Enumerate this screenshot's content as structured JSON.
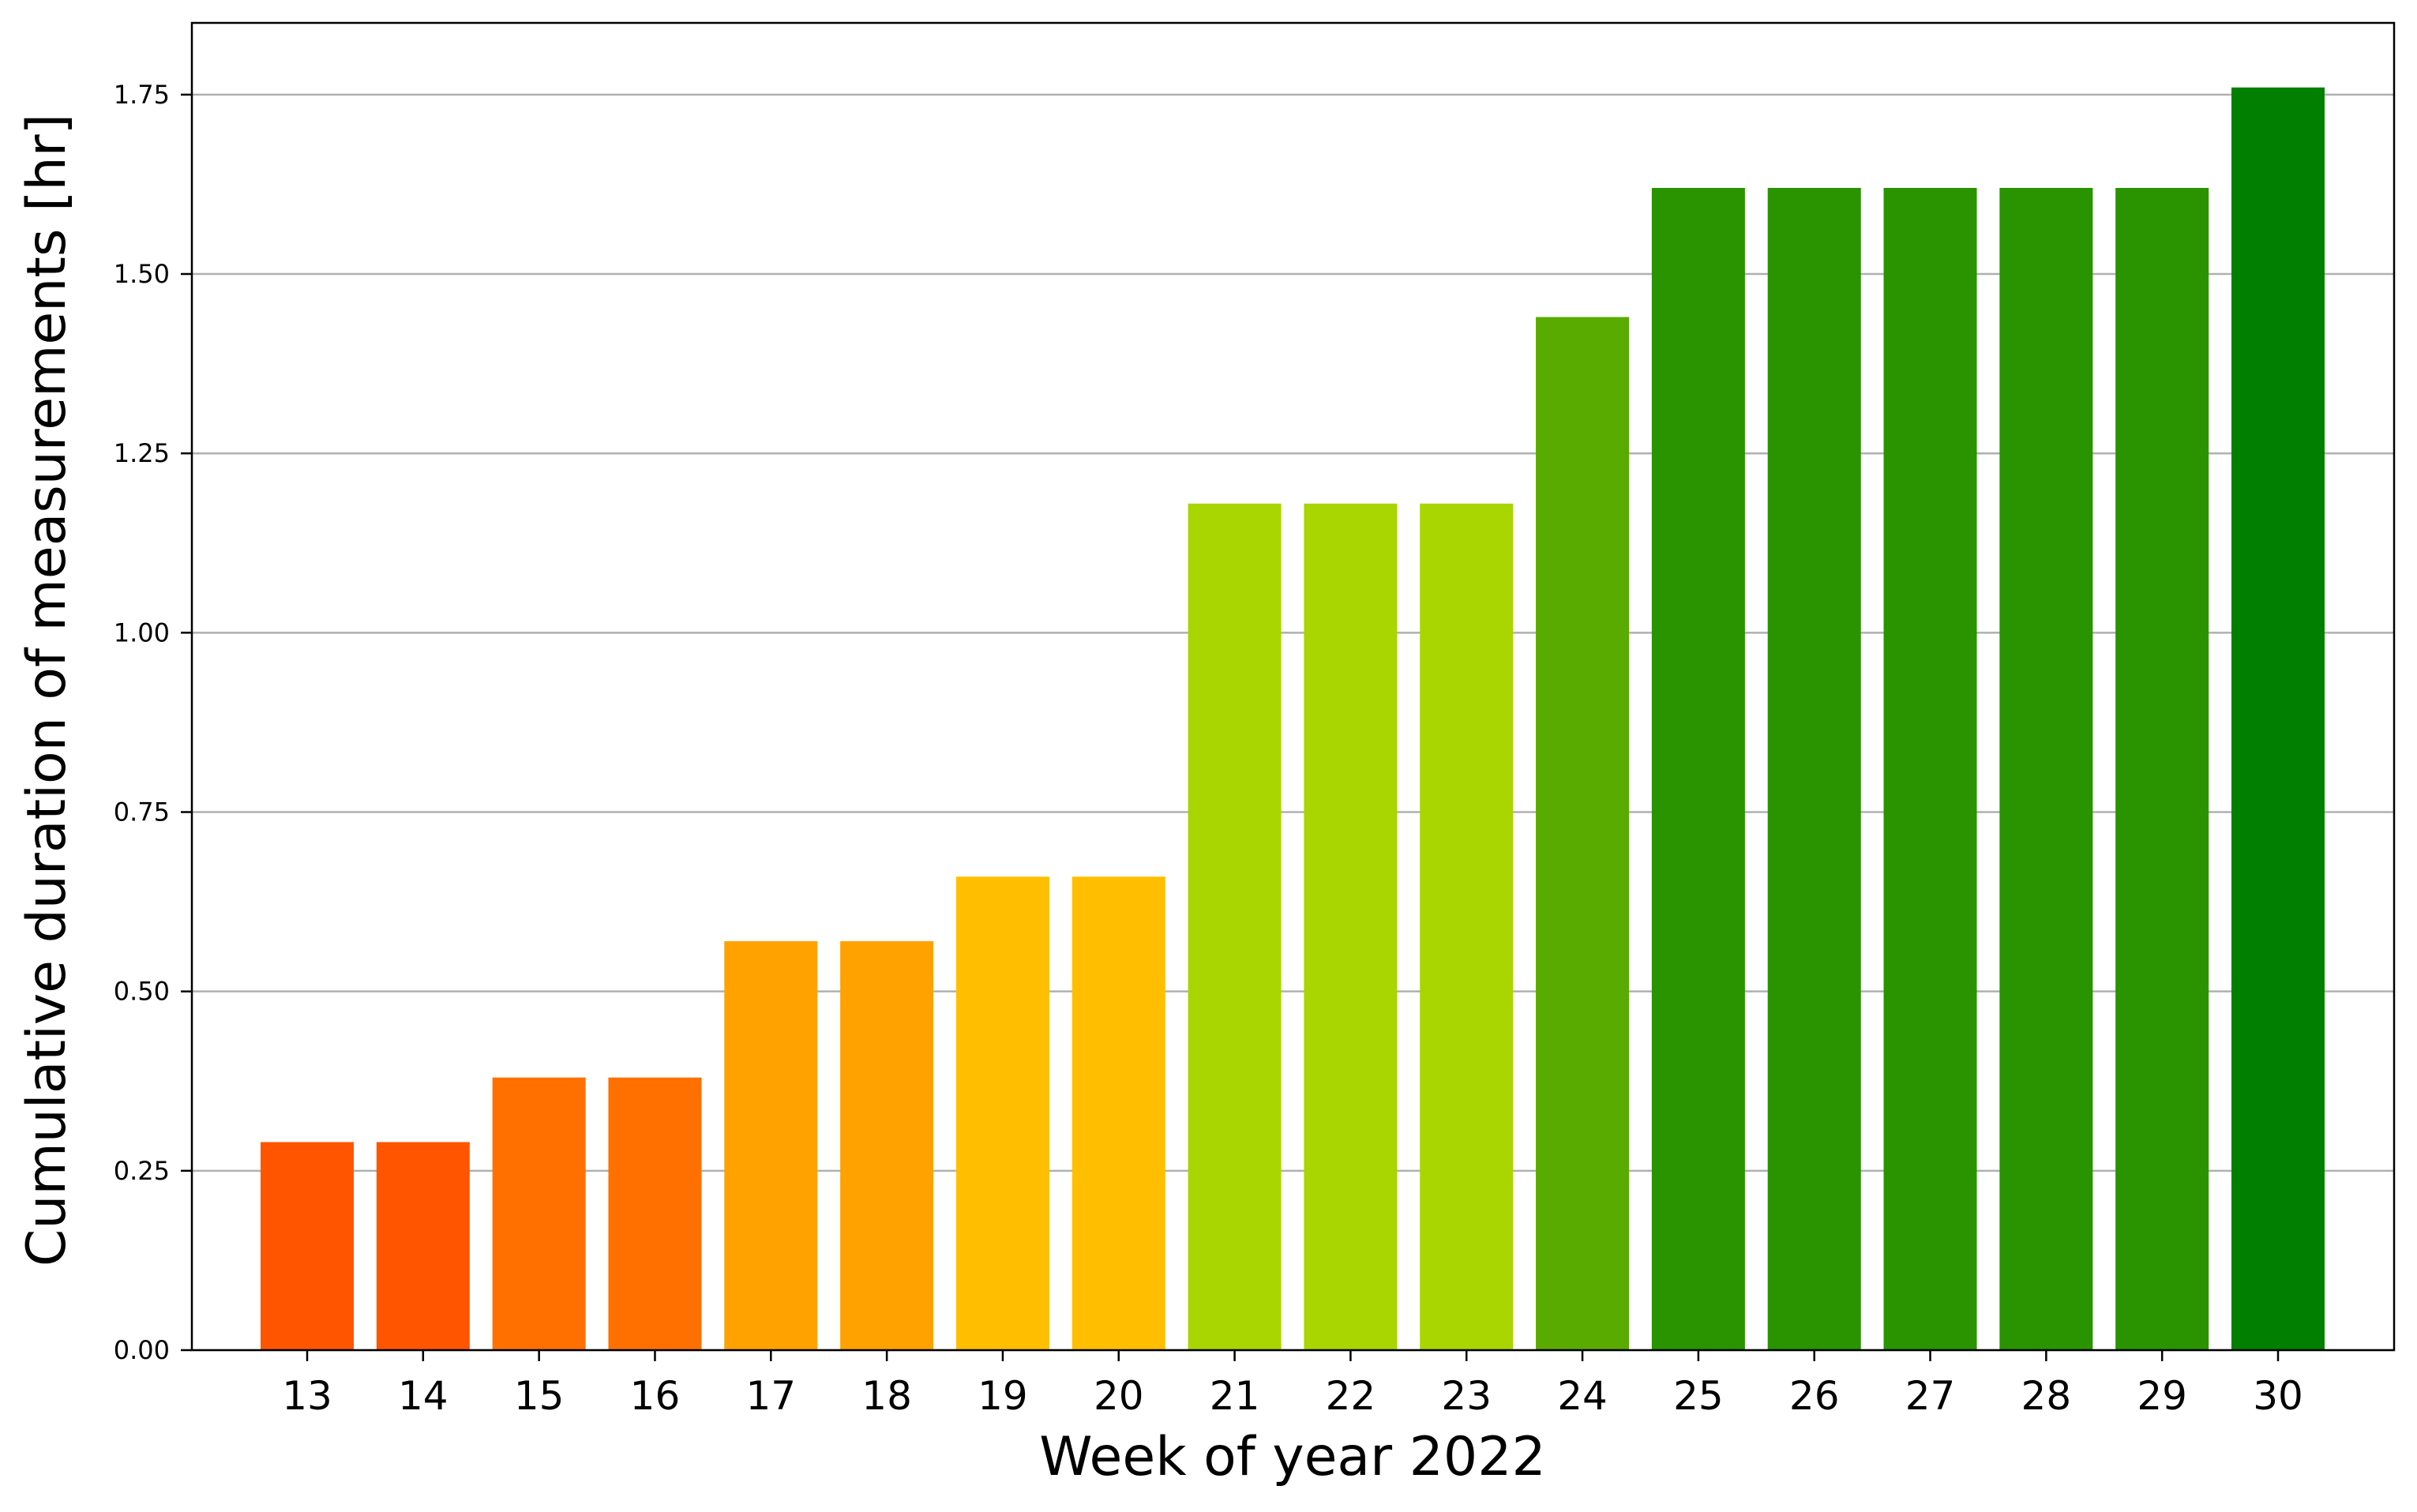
{
  "chart_data": {
    "type": "bar",
    "title": "",
    "xlabel": "Week of year 2022",
    "ylabel": "Cumulative duration of measurements [hr]",
    "categories": [
      "13",
      "14",
      "15",
      "16",
      "17",
      "18",
      "19",
      "20",
      "21",
      "22",
      "23",
      "24",
      "25",
      "26",
      "27",
      "28",
      "29",
      "30"
    ],
    "values": [
      0.29,
      0.29,
      0.38,
      0.38,
      0.57,
      0.57,
      0.66,
      0.66,
      1.18,
      1.18,
      1.18,
      1.44,
      1.62,
      1.62,
      1.62,
      1.62,
      1.62,
      1.76
    ],
    "colors": [
      "#ff5500",
      "#ff5500",
      "#ff7000",
      "#ff7000",
      "#ffa200",
      "#ffa200",
      "#ffbf00",
      "#ffbf00",
      "#a9d500",
      "#a9d500",
      "#a9d500",
      "#5aab00",
      "#299300",
      "#299300",
      "#299300",
      "#299300",
      "#299300",
      "#007f00"
    ],
    "ylim": [
      0,
      1.85
    ],
    "yticks": [
      "0.00",
      "0.25",
      "0.50",
      "0.75",
      "1.00",
      "1.25",
      "1.50",
      "1.75"
    ],
    "grid": "horizontal",
    "legend": "none"
  }
}
